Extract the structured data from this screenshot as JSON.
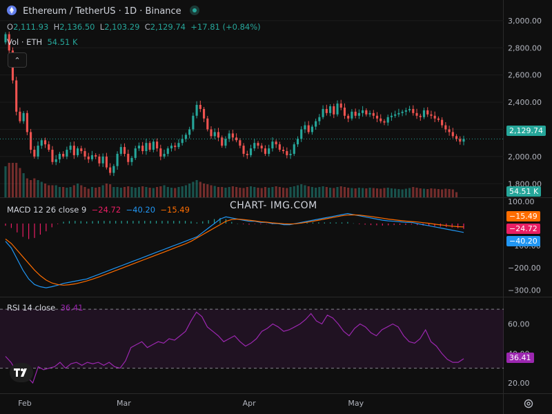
{
  "header": {
    "title": "Ethereum / TetherUS · 1D · Binance",
    "ohlc": {
      "o_label": "O",
      "o": "2,111.93",
      "h_label": "H",
      "h": "2,136.50",
      "l_label": "L",
      "l": "2,103.29",
      "c_label": "C",
      "c": "2,129.74",
      "change": "+17.81 (+0.84%)"
    },
    "vol_label": "Vol · ETH",
    "vol_value": "54.51 K"
  },
  "watermark": "CHART- IMG.COM",
  "macd_legend": {
    "name": "MACD",
    "params": "12 26 close 9",
    "hist": "−24.72",
    "macd": "−40.20",
    "signal": "−15.49"
  },
  "rsi_legend": {
    "name": "RSI",
    "params": "14 close",
    "value": "36.41"
  },
  "colors": {
    "up": "#26a69a",
    "down": "#ef5350",
    "macd": "#2196f3",
    "signal": "#ff6d00",
    "hist": "#e91e63",
    "rsi": "#9c27b0",
    "bg": "#0f0f0f"
  },
  "chart_data": [
    {
      "type": "candlestick",
      "title": "Ethereum / TetherUS · 1D · Binance",
      "price_axis": {
        "ticks": [
          "3,000.00",
          "2,800.00",
          "2,600.00",
          "2,400.00",
          "2,200.00",
          "2,000.00",
          "1,800.00"
        ],
        "range": [
          1700,
          3050
        ]
      },
      "last_price": "2,129.74",
      "x_labels": [
        "Feb",
        "Mar",
        "Apr",
        "May"
      ],
      "closes": [
        2900,
        2780,
        2560,
        2330,
        2260,
        2320,
        2180,
        2050,
        2000,
        2080,
        2120,
        2090,
        2050,
        1960,
        1980,
        2020,
        2000,
        2050,
        2080,
        2010,
        2060,
        2040,
        2000,
        1980,
        2010,
        2000,
        1950,
        2000,
        1920,
        1880,
        1930,
        2020,
        2070,
        2020,
        1960,
        1990,
        2060,
        2080,
        2040,
        2100,
        2050,
        2110,
        2060,
        2000,
        2020,
        2060,
        2080,
        2070,
        2100,
        2130,
        2160,
        2200,
        2300,
        2380,
        2350,
        2280,
        2200,
        2150,
        2180,
        2140,
        2080,
        2130,
        2170,
        2140,
        2120,
        2080,
        2020,
        2010,
        2060,
        2100,
        2080,
        2060,
        2020,
        2060,
        2110,
        2090,
        2050,
        2040,
        2010,
        2020,
        2090,
        2130,
        2200,
        2230,
        2180,
        2220,
        2260,
        2290,
        2350,
        2320,
        2370,
        2310,
        2390,
        2360,
        2300,
        2280,
        2330,
        2300,
        2320,
        2340,
        2310,
        2320,
        2300,
        2280,
        2260,
        2250,
        2290,
        2300,
        2310,
        2320,
        2330,
        2340,
        2350,
        2320,
        2300,
        2290,
        2340,
        2310,
        2300,
        2280,
        2270,
        2230,
        2200,
        2180,
        2150,
        2130,
        2110,
        2129.74
      ]
    },
    {
      "type": "bar",
      "title": "Vol · ETH",
      "last_value": "54.51 K",
      "values": [
        0.9,
        1.0,
        1.0,
        1.0,
        0.85,
        0.7,
        0.55,
        0.5,
        0.55,
        0.5,
        0.45,
        0.4,
        0.35,
        0.35,
        0.35,
        0.3,
        0.3,
        0.28,
        0.3,
        0.35,
        0.4,
        0.35,
        0.3,
        0.25,
        0.3,
        0.28,
        0.3,
        0.35,
        0.4,
        0.38,
        0.3,
        0.3,
        0.28,
        0.3,
        0.32,
        0.3,
        0.28,
        0.3,
        0.32,
        0.3,
        0.28,
        0.27,
        0.3,
        0.32,
        0.35,
        0.3,
        0.28,
        0.27,
        0.3,
        0.32,
        0.35,
        0.4,
        0.45,
        0.5,
        0.45,
        0.4,
        0.38,
        0.35,
        0.33,
        0.3,
        0.3,
        0.28,
        0.3,
        0.32,
        0.3,
        0.28,
        0.27,
        0.3,
        0.32,
        0.3,
        0.28,
        0.27,
        0.3,
        0.28,
        0.3,
        0.32,
        0.3,
        0.28,
        0.27,
        0.3,
        0.32,
        0.35,
        0.38,
        0.35,
        0.32,
        0.3,
        0.28,
        0.3,
        0.32,
        0.3,
        0.28,
        0.27,
        0.3,
        0.32,
        0.3,
        0.28,
        0.27,
        0.26,
        0.28,
        0.27,
        0.26,
        0.28,
        0.27,
        0.26,
        0.25,
        0.27,
        0.28,
        0.26,
        0.25,
        0.24,
        0.23,
        0.25,
        0.27,
        0.3,
        0.28,
        0.26,
        0.25,
        0.24,
        0.26,
        0.25,
        0.24,
        0.23,
        0.25,
        0.24,
        0.23,
        0.15
      ]
    },
    {
      "type": "line",
      "title": "MACD 12 26 close 9",
      "y_axis": {
        "ticks": [
          "100.00",
          "−100.00",
          "−200.00",
          "−300.00"
        ],
        "range": [
          -330,
          115
        ]
      },
      "macd": [
        -80,
        -110,
        -160,
        -210,
        -250,
        -275,
        -285,
        -290,
        -285,
        -278,
        -270,
        -265,
        -260,
        -255,
        -250,
        -240,
        -230,
        -220,
        -210,
        -200,
        -190,
        -180,
        -170,
        -160,
        -150,
        -140,
        -130,
        -120,
        -110,
        -100,
        -90,
        -80,
        -70,
        -60,
        -40,
        -20,
        0,
        20,
        30,
        25,
        20,
        15,
        10,
        10,
        5,
        5,
        0,
        0,
        -5,
        -5,
        0,
        5,
        10,
        15,
        20,
        25,
        30,
        35,
        40,
        45,
        40,
        35,
        30,
        25,
        20,
        15,
        12,
        10,
        8,
        5,
        5,
        0,
        -5,
        -10,
        -15,
        -20,
        -25,
        -30,
        -35,
        -40
      ],
      "signal": [
        -70,
        -90,
        -120,
        -150,
        -180,
        -210,
        -235,
        -255,
        -268,
        -275,
        -278,
        -276,
        -272,
        -266,
        -259,
        -251,
        -242,
        -232,
        -222,
        -212,
        -202,
        -192,
        -182,
        -172,
        -162,
        -152,
        -142,
        -132,
        -122,
        -112,
        -102,
        -92,
        -80,
        -65,
        -50,
        -35,
        -20,
        -5,
        10,
        18,
        20,
        18,
        15,
        12,
        8,
        6,
        3,
        1,
        -1,
        -2,
        -1,
        2,
        6,
        10,
        15,
        20,
        25,
        30,
        35,
        38,
        39,
        38,
        35,
        32,
        28,
        24,
        20,
        17,
        14,
        11,
        9,
        7,
        4,
        1,
        -3,
        -6,
        -9,
        -12,
        -14,
        -15.49
      ]
    },
    {
      "type": "line",
      "title": "RSI 14 close",
      "y_axis": {
        "ticks": [
          "60.00",
          "40.00",
          "20.00"
        ],
        "range": [
          13,
          78
        ]
      },
      "bands": [
        70,
        30
      ],
      "values": [
        38,
        34,
        28,
        30,
        24,
        20,
        31,
        29,
        30,
        31,
        34,
        30,
        33,
        34,
        32,
        34,
        33,
        34,
        32,
        34,
        31,
        30,
        35,
        44,
        46,
        48,
        44,
        46,
        48,
        47,
        50,
        49,
        52,
        55,
        62,
        68,
        65,
        58,
        55,
        52,
        48,
        50,
        52,
        48,
        45,
        47,
        50,
        55,
        57,
        60,
        58,
        55,
        56,
        58,
        60,
        63,
        67,
        62,
        60,
        66,
        64,
        60,
        55,
        52,
        57,
        60,
        58,
        54,
        52,
        56,
        58,
        60,
        58,
        52,
        48,
        47,
        50,
        56,
        48,
        45,
        40,
        36,
        34,
        34,
        36.41
      ]
    }
  ]
}
